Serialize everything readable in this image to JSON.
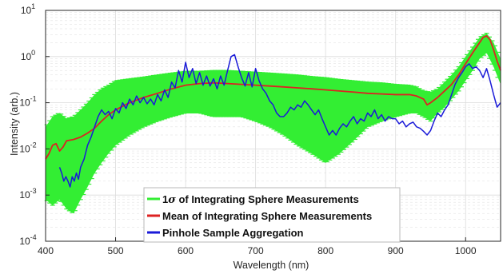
{
  "chart_data": {
    "type": "line",
    "xlabel": "Wavelength (nm)",
    "ylabel": "Intensity (arb.)",
    "xlim": [
      400,
      1050
    ],
    "ylim": [
      0.0001,
      10
    ],
    "yscale": "log",
    "x_ticks": [
      "400",
      "500",
      "600",
      "700",
      "800",
      "900",
      "1000"
    ],
    "x_tick_values": [
      400,
      500,
      600,
      700,
      800,
      900,
      1000
    ],
    "y_tick_values": [
      0.0001,
      0.001,
      0.01,
      0.1,
      1,
      10
    ],
    "y_ticks": [
      {
        "base": "10",
        "exp": "-4"
      },
      {
        "base": "10",
        "exp": "-3"
      },
      {
        "base": "10",
        "exp": "-2"
      },
      {
        "base": "10",
        "exp": "-1"
      },
      {
        "base": "10",
        "exp": "0"
      },
      {
        "base": "10",
        "exp": "1"
      }
    ],
    "grid": true,
    "legend_position": "bottom-center",
    "legend": {
      "band_prefix": "1",
      "band_sigma": "σ",
      "band_rest": " of Integrating Sphere Measurements",
      "mean": "Mean of Integrating Sphere Measurements",
      "pinhole": "Pinhole Sample Aggregation"
    },
    "colors": {
      "band": "#33ee33",
      "mean": "#dd2222",
      "pinhole": "#1a1ad8",
      "grid": "#dcdcdc",
      "axis": "#262626"
    },
    "mean_series": {
      "x": [
        400,
        405,
        410,
        415,
        420,
        425,
        430,
        440,
        450,
        460,
        470,
        480,
        490,
        500,
        520,
        540,
        560,
        580,
        600,
        620,
        640,
        660,
        680,
        700,
        720,
        740,
        760,
        780,
        800,
        820,
        840,
        860,
        880,
        900,
        920,
        930,
        940,
        945,
        950,
        960,
        970,
        980,
        990,
        1000,
        1010,
        1020,
        1025,
        1030,
        1035,
        1040,
        1045,
        1050
      ],
      "y": [
        0.006,
        0.008,
        0.012,
        0.013,
        0.009,
        0.011,
        0.015,
        0.016,
        0.018,
        0.022,
        0.028,
        0.04,
        0.055,
        0.07,
        0.1,
        0.13,
        0.16,
        0.2,
        0.24,
        0.26,
        0.27,
        0.26,
        0.25,
        0.24,
        0.23,
        0.22,
        0.21,
        0.2,
        0.19,
        0.18,
        0.17,
        0.16,
        0.155,
        0.15,
        0.15,
        0.14,
        0.12,
        0.09,
        0.1,
        0.13,
        0.18,
        0.25,
        0.4,
        0.7,
        1.2,
        2.0,
        2.6,
        2.8,
        2.3,
        1.4,
        0.8,
        0.5
      ]
    },
    "band": {
      "x": [
        400,
        410,
        420,
        430,
        440,
        450,
        460,
        470,
        480,
        490,
        500,
        520,
        540,
        560,
        580,
        600,
        620,
        640,
        660,
        680,
        700,
        720,
        740,
        760,
        780,
        800,
        820,
        840,
        860,
        880,
        900,
        920,
        930,
        940,
        950,
        960,
        970,
        980,
        990,
        1000,
        1010,
        1020,
        1030,
        1040,
        1050
      ],
      "upper": [
        0.03,
        0.05,
        0.06,
        0.045,
        0.05,
        0.07,
        0.1,
        0.15,
        0.2,
        0.24,
        0.3,
        0.33,
        0.36,
        0.4,
        0.44,
        0.48,
        0.48,
        0.5,
        0.5,
        0.48,
        0.46,
        0.44,
        0.42,
        0.4,
        0.37,
        0.35,
        0.32,
        0.3,
        0.28,
        0.27,
        0.25,
        0.24,
        0.22,
        0.18,
        0.17,
        0.2,
        0.28,
        0.4,
        0.6,
        1.0,
        1.6,
        2.6,
        3.2,
        2.0,
        0.9
      ],
      "lower": [
        0.0008,
        0.0006,
        0.0008,
        0.0005,
        0.0004,
        0.0008,
        0.0015,
        0.003,
        0.005,
        0.008,
        0.012,
        0.02,
        0.03,
        0.04,
        0.05,
        0.06,
        0.06,
        0.05,
        0.05,
        0.05,
        0.04,
        0.03,
        0.02,
        0.012,
        0.008,
        0.005,
        0.008,
        0.015,
        0.03,
        0.04,
        0.05,
        0.06,
        0.06,
        0.05,
        0.04,
        0.06,
        0.08,
        0.12,
        0.18,
        0.3,
        0.5,
        0.9,
        1.2,
        0.6,
        0.25
      ]
    },
    "pinhole_series": {
      "x": [
        420,
        423,
        426,
        429,
        432,
        435,
        438,
        441,
        444,
        447,
        450,
        455,
        460,
        465,
        470,
        475,
        480,
        485,
        490,
        495,
        500,
        505,
        510,
        515,
        520,
        525,
        530,
        535,
        540,
        545,
        550,
        555,
        560,
        565,
        570,
        575,
        580,
        585,
        590,
        595,
        600,
        605,
        610,
        615,
        620,
        625,
        630,
        635,
        640,
        645,
        650,
        655,
        660,
        665,
        670,
        675,
        680,
        685,
        690,
        695,
        700,
        705,
        710,
        715,
        720,
        725,
        730,
        735,
        740,
        745,
        750,
        755,
        760,
        765,
        770,
        775,
        780,
        785,
        790,
        795,
        800,
        805,
        810,
        815,
        820,
        825,
        830,
        835,
        840,
        845,
        850,
        855,
        860,
        865,
        870,
        875,
        880,
        885,
        890,
        895,
        900,
        905,
        910,
        915,
        920,
        925,
        930,
        935,
        940,
        945,
        950,
        955,
        960,
        965,
        970,
        975,
        980,
        985,
        990,
        995,
        1000,
        1005,
        1010,
        1015,
        1020,
        1025,
        1030,
        1035,
        1040,
        1045,
        1050
      ],
      "y": [
        0.004,
        0.003,
        0.002,
        0.0025,
        0.002,
        0.0015,
        0.0025,
        0.002,
        0.003,
        0.0022,
        0.004,
        0.006,
        0.012,
        0.018,
        0.03,
        0.05,
        0.07,
        0.055,
        0.065,
        0.045,
        0.075,
        0.06,
        0.1,
        0.075,
        0.12,
        0.09,
        0.14,
        0.1,
        0.13,
        0.095,
        0.12,
        0.09,
        0.15,
        0.11,
        0.19,
        0.13,
        0.28,
        0.21,
        0.5,
        0.28,
        0.75,
        0.35,
        0.55,
        0.26,
        0.45,
        0.24,
        0.38,
        0.23,
        0.33,
        0.2,
        0.38,
        0.24,
        0.5,
        1.0,
        1.1,
        0.6,
        0.35,
        0.23,
        0.45,
        0.22,
        0.55,
        0.3,
        0.2,
        0.16,
        0.11,
        0.09,
        0.06,
        0.05,
        0.05,
        0.06,
        0.08,
        0.07,
        0.09,
        0.08,
        0.11,
        0.09,
        0.07,
        0.055,
        0.07,
        0.045,
        0.03,
        0.02,
        0.025,
        0.02,
        0.028,
        0.035,
        0.03,
        0.04,
        0.05,
        0.035,
        0.045,
        0.04,
        0.06,
        0.05,
        0.07,
        0.045,
        0.055,
        0.04,
        0.05,
        0.045,
        0.045,
        0.035,
        0.04,
        0.03,
        0.035,
        0.038,
        0.03,
        0.028,
        0.024,
        0.02,
        0.025,
        0.04,
        0.06,
        0.05,
        0.07,
        0.09,
        0.15,
        0.25,
        0.35,
        0.45,
        0.6,
        0.7,
        0.55,
        0.6,
        0.5,
        0.35,
        0.55,
        0.3,
        0.15,
        0.08,
        0.1
      ]
    }
  }
}
